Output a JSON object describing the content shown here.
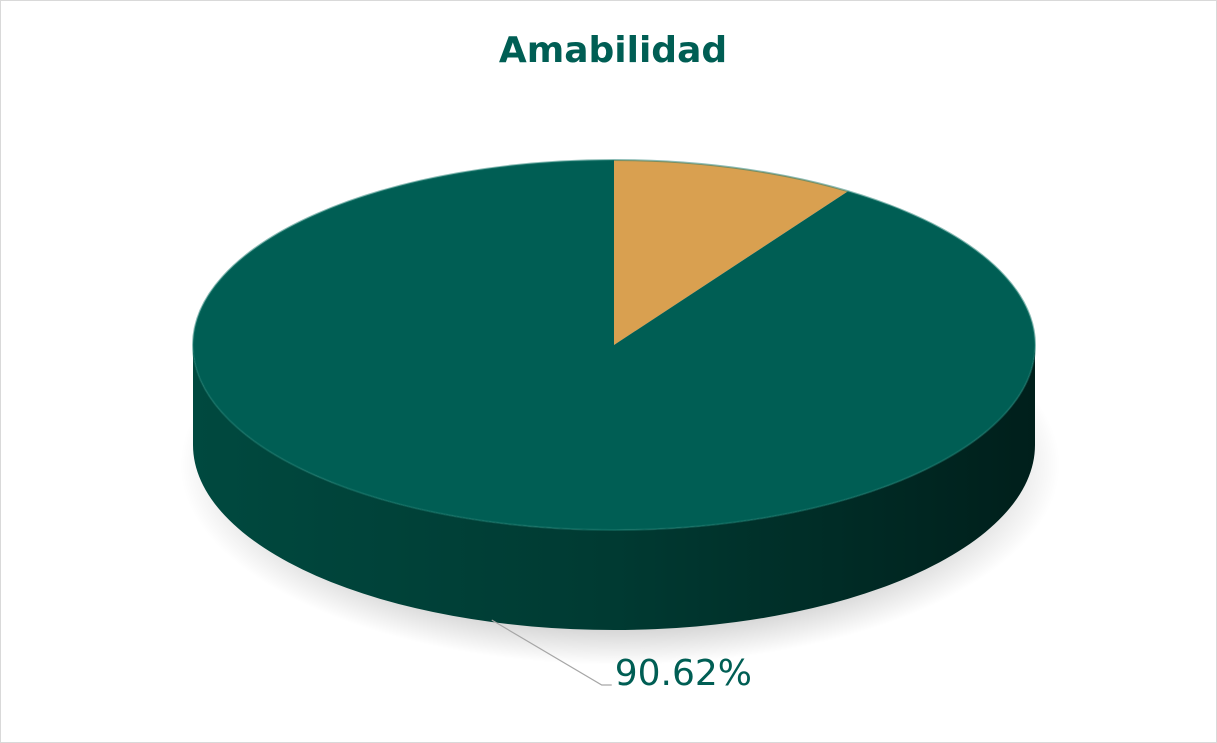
{
  "chart_data": {
    "type": "pie",
    "title": "Amabilidad",
    "values": [
      9.38,
      90.62
    ],
    "value_labels": [
      null,
      "90.62%"
    ],
    "colors": [
      "#d9a050",
      "#005e54"
    ]
  }
}
